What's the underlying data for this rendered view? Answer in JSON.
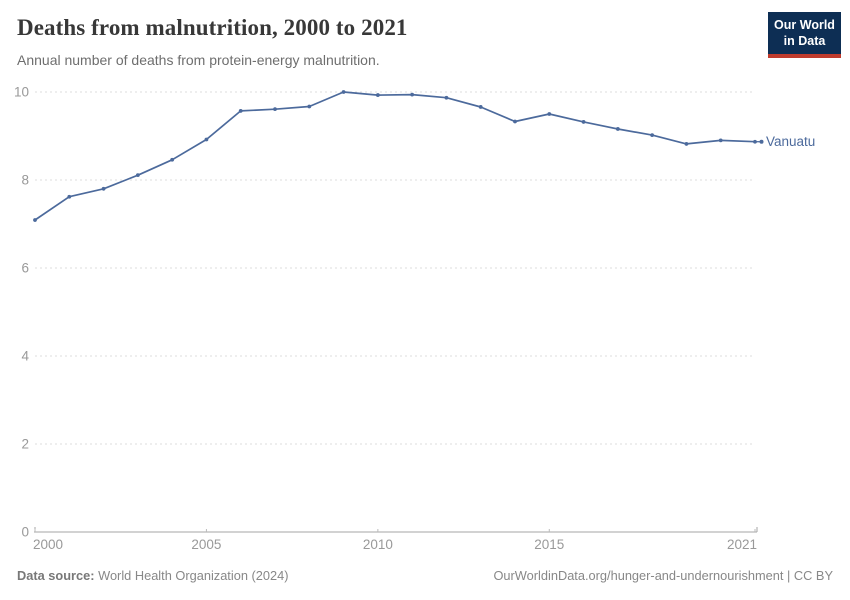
{
  "header": {
    "title": "Deaths from malnutrition, 2000 to 2021",
    "subtitle": "Annual number of deaths from protein-energy malnutrition.",
    "logo": {
      "line1": "Our World",
      "line2": "in Data",
      "bg_color": "#0d2e54",
      "accent_color": "#bf3b2d"
    }
  },
  "chart_data": {
    "type": "line",
    "title": "Deaths from malnutrition, 2000 to 2021",
    "subtitle": "Annual number of deaths from protein-energy malnutrition.",
    "x": [
      2000,
      2001,
      2002,
      2003,
      2004,
      2005,
      2006,
      2007,
      2008,
      2009,
      2010,
      2011,
      2012,
      2013,
      2014,
      2015,
      2016,
      2017,
      2018,
      2019,
      2020,
      2021
    ],
    "series": [
      {
        "name": "Vanuatu",
        "color": "#4C6A9C",
        "values": [
          7.09,
          7.62,
          7.8,
          8.11,
          8.46,
          8.92,
          9.57,
          9.61,
          9.67,
          10.0,
          9.93,
          9.94,
          9.87,
          9.66,
          9.33,
          9.5,
          9.32,
          9.16,
          9.02,
          8.82,
          8.9,
          8.87
        ]
      }
    ],
    "xlabel": "",
    "ylabel": "",
    "ylim": [
      0,
      10
    ],
    "xlim": [
      2000,
      2021
    ],
    "yticks": [
      0,
      2,
      4,
      6,
      8,
      10
    ],
    "xticks": [
      2000,
      2005,
      2010,
      2015,
      2021
    ],
    "grid": "horizontal-dashed",
    "legend_position": "end-of-line",
    "colors": {
      "grid": "#dddddd",
      "axis": "#a5a5a5",
      "tick_label": "#999999"
    }
  },
  "footer": {
    "datasource_label": "Data source:",
    "datasource_value": "World Health Organization (2024)",
    "link": "OurWorldinData.org/hunger-and-undernourishment | CC BY"
  }
}
